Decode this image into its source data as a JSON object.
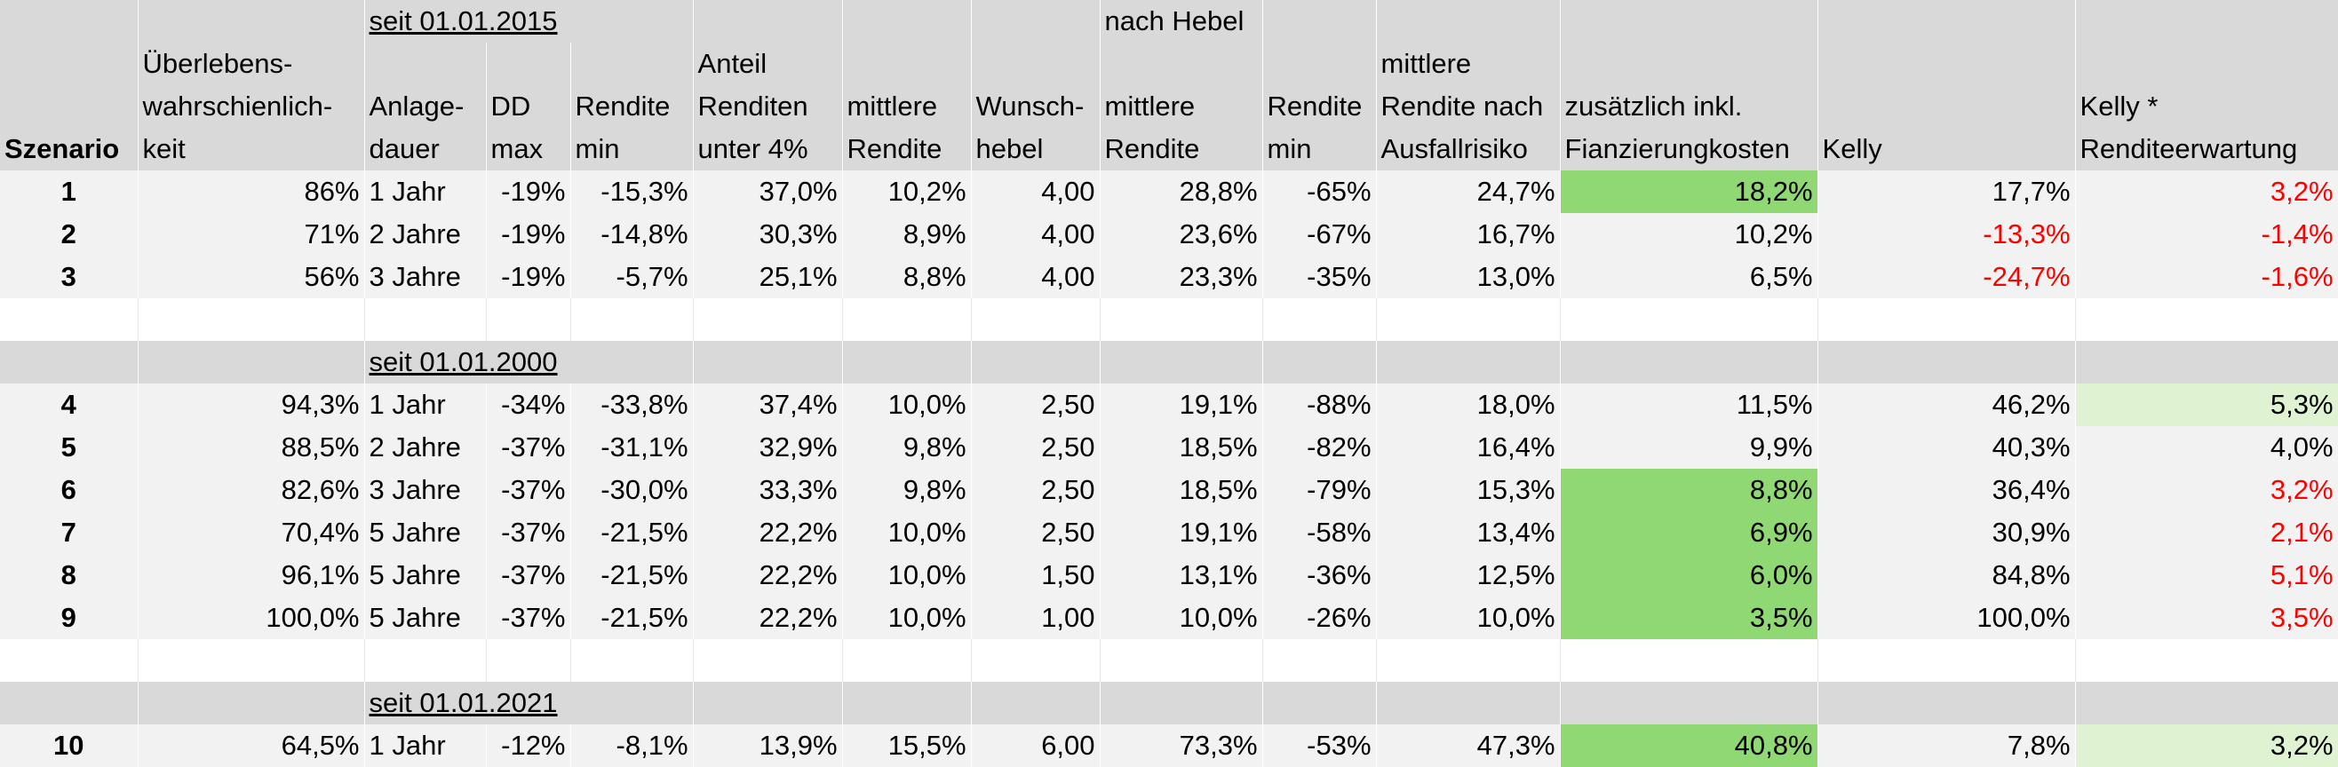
{
  "header": {
    "top": {
      "period": "seit 01.01.2015",
      "after_leverage": "nach Hebel"
    },
    "columns": [
      {
        "key": "scenario",
        "lines": [
          "",
          "",
          "",
          "Szenario"
        ]
      },
      {
        "key": "survival",
        "lines": [
          "",
          "Überlebens-",
          "wahrschienlich-",
          "keit"
        ]
      },
      {
        "key": "duration",
        "lines": [
          "",
          "",
          "Anlage-",
          "dauer"
        ]
      },
      {
        "key": "dd_max",
        "lines": [
          "",
          "",
          "DD",
          "max"
        ]
      },
      {
        "key": "ret_min",
        "lines": [
          "",
          "",
          "Rendite",
          "min"
        ]
      },
      {
        "key": "share_below",
        "lines": [
          "",
          "Anteil",
          "Renditen",
          "unter 4%"
        ]
      },
      {
        "key": "mean_ret",
        "lines": [
          "",
          "",
          "mittlere",
          "Rendite"
        ]
      },
      {
        "key": "lev",
        "lines": [
          "",
          "",
          "Wunsch-",
          "hebel"
        ]
      },
      {
        "key": "lev_mean_ret",
        "lines": [
          "",
          "",
          "mittlere",
          "Rendite"
        ]
      },
      {
        "key": "lev_ret_min",
        "lines": [
          "",
          "",
          "Rendite",
          "min"
        ]
      },
      {
        "key": "lev_default",
        "lines": [
          "",
          "mittlere",
          "Rendite nach",
          "Ausfallrisiko"
        ]
      },
      {
        "key": "lev_financing",
        "lines": [
          "",
          "",
          "zusätzlich inkl.",
          "Fianzierungkosten"
        ]
      },
      {
        "key": "kelly",
        "lines": [
          "",
          "",
          "",
          "Kelly"
        ]
      },
      {
        "key": "kelly_exp",
        "lines": [
          "",
          "",
          "Kelly *",
          "Renditeerwartung"
        ]
      }
    ]
  },
  "groups": [
    {
      "label": "",
      "rows": [
        {
          "scenario": "1",
          "survival": "86%",
          "duration": "1 Jahr",
          "dd_max": "-19%",
          "ret_min": "-15,3%",
          "share_below": "37,0%",
          "mean_ret": "10,2%",
          "lev": "4,00",
          "lev_mean_ret": "28,8%",
          "lev_ret_min": "-65%",
          "lev_default": "24,7%",
          "lev_financing": "18,2%",
          "kelly": "17,7%",
          "kelly_exp": "3,2%",
          "fin_hl": "g1",
          "kelly_neg": false,
          "kexp_neg": true,
          "kexp_hl": ""
        },
        {
          "scenario": "2",
          "survival": "71%",
          "duration": "2 Jahre",
          "dd_max": "-19%",
          "ret_min": "-14,8%",
          "share_below": "30,3%",
          "mean_ret": "8,9%",
          "lev": "4,00",
          "lev_mean_ret": "23,6%",
          "lev_ret_min": "-67%",
          "lev_default": "16,7%",
          "lev_financing": "10,2%",
          "kelly": "-13,3%",
          "kelly_exp": "-1,4%",
          "fin_hl": "",
          "kelly_neg": true,
          "kexp_neg": true,
          "kexp_hl": ""
        },
        {
          "scenario": "3",
          "survival": "56%",
          "duration": "3 Jahre",
          "dd_max": "-19%",
          "ret_min": "-5,7%",
          "share_below": "25,1%",
          "mean_ret": "8,8%",
          "lev": "4,00",
          "lev_mean_ret": "23,3%",
          "lev_ret_min": "-35%",
          "lev_default": "13,0%",
          "lev_financing": "6,5%",
          "kelly": "-24,7%",
          "kelly_exp": "-1,6%",
          "fin_hl": "",
          "kelly_neg": true,
          "kexp_neg": true,
          "kexp_hl": ""
        }
      ]
    },
    {
      "label": "seit 01.01.2000",
      "rows": [
        {
          "scenario": "4",
          "survival": "94,3%",
          "duration": "1 Jahr",
          "dd_max": "-34%",
          "ret_min": "-33,8%",
          "share_below": "37,4%",
          "mean_ret": "10,0%",
          "lev": "2,50",
          "lev_mean_ret": "19,1%",
          "lev_ret_min": "-88%",
          "lev_default": "18,0%",
          "lev_financing": "11,5%",
          "kelly": "46,2%",
          "kelly_exp": "5,3%",
          "fin_hl": "",
          "kelly_neg": false,
          "kexp_neg": false,
          "kexp_hl": "g2"
        },
        {
          "scenario": "5",
          "survival": "88,5%",
          "duration": "2 Jahre",
          "dd_max": "-37%",
          "ret_min": "-31,1%",
          "share_below": "32,9%",
          "mean_ret": "9,8%",
          "lev": "2,50",
          "lev_mean_ret": "18,5%",
          "lev_ret_min": "-82%",
          "lev_default": "16,4%",
          "lev_financing": "9,9%",
          "kelly": "40,3%",
          "kelly_exp": "4,0%",
          "fin_hl": "",
          "kelly_neg": false,
          "kexp_neg": false,
          "kexp_hl": ""
        },
        {
          "scenario": "6",
          "survival": "82,6%",
          "duration": "3 Jahre",
          "dd_max": "-37%",
          "ret_min": "-30,0%",
          "share_below": "33,3%",
          "mean_ret": "9,8%",
          "lev": "2,50",
          "lev_mean_ret": "18,5%",
          "lev_ret_min": "-79%",
          "lev_default": "15,3%",
          "lev_financing": "8,8%",
          "kelly": "36,4%",
          "kelly_exp": "3,2%",
          "fin_hl": "g1",
          "kelly_neg": false,
          "kexp_neg": true,
          "kexp_hl": ""
        },
        {
          "scenario": "7",
          "survival": "70,4%",
          "duration": "5 Jahre",
          "dd_max": "-37%",
          "ret_min": "-21,5%",
          "share_below": "22,2%",
          "mean_ret": "10,0%",
          "lev": "2,50",
          "lev_mean_ret": "19,1%",
          "lev_ret_min": "-58%",
          "lev_default": "13,4%",
          "lev_financing": "6,9%",
          "kelly": "30,9%",
          "kelly_exp": "2,1%",
          "fin_hl": "g1",
          "kelly_neg": false,
          "kexp_neg": true,
          "kexp_hl": ""
        },
        {
          "scenario": "8",
          "survival": "96,1%",
          "duration": "5 Jahre",
          "dd_max": "-37%",
          "ret_min": "-21,5%",
          "share_below": "22,2%",
          "mean_ret": "10,0%",
          "lev": "1,50",
          "lev_mean_ret": "13,1%",
          "lev_ret_min": "-36%",
          "lev_default": "12,5%",
          "lev_financing": "6,0%",
          "kelly": "84,8%",
          "kelly_exp": "5,1%",
          "fin_hl": "g1",
          "kelly_neg": false,
          "kexp_neg": true,
          "kexp_hl": ""
        },
        {
          "scenario": "9",
          "survival": "100,0%",
          "duration": "5 Jahre",
          "dd_max": "-37%",
          "ret_min": "-21,5%",
          "share_below": "22,2%",
          "mean_ret": "10,0%",
          "lev": "1,00",
          "lev_mean_ret": "10,0%",
          "lev_ret_min": "-26%",
          "lev_default": "10,0%",
          "lev_financing": "3,5%",
          "kelly": "100,0%",
          "kelly_exp": "3,5%",
          "fin_hl": "g1",
          "kelly_neg": false,
          "kexp_neg": true,
          "kexp_hl": ""
        }
      ]
    },
    {
      "label": "seit 01.01.2021",
      "rows": [
        {
          "scenario": "10",
          "survival": "64,5%",
          "duration": "1 Jahr",
          "dd_max": "-12%",
          "ret_min": "-8,1%",
          "share_below": "13,9%",
          "mean_ret": "15,5%",
          "lev": "6,00",
          "lev_mean_ret": "73,3%",
          "lev_ret_min": "-53%",
          "lev_default": "47,3%",
          "lev_financing": "40,8%",
          "kelly": "7,8%",
          "kelly_exp": "3,2%",
          "fin_hl": "g1",
          "kelly_neg": false,
          "kexp_neg": false,
          "kexp_hl": "g2"
        }
      ]
    }
  ],
  "colors": {
    "header_bg": "#d9d9d9",
    "row_bg": "#f2f2f2",
    "highlight_green": "#8fd873",
    "highlight_light_green": "#dff3d3",
    "negative_red": "#ff0000"
  }
}
